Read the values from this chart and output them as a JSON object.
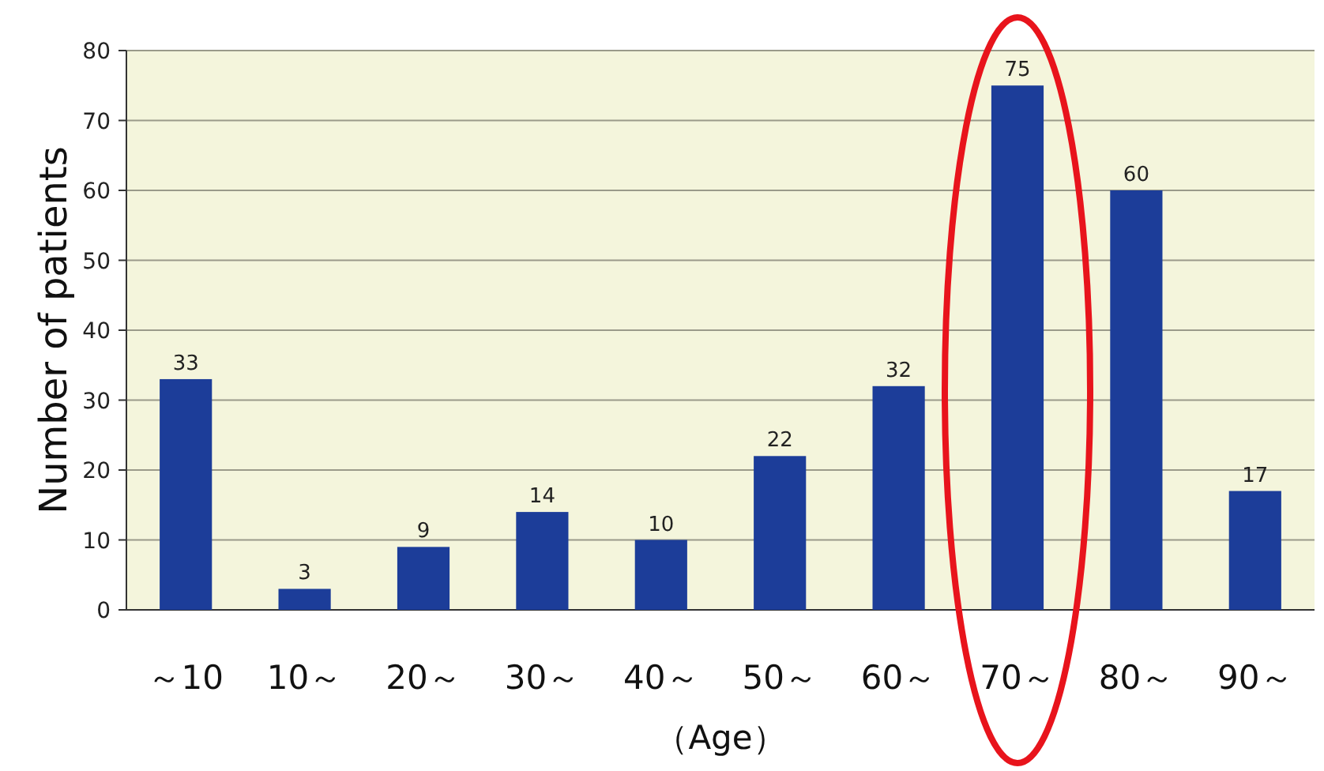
{
  "chart_data": {
    "type": "bar",
    "xlabel": "（Age）",
    "ylabel": "Number of patients",
    "categories": [
      "～10",
      "10～",
      "20～",
      "30～",
      "40～",
      "50～",
      "60～",
      "70～",
      "80～",
      "90～"
    ],
    "values": [
      33,
      3,
      9,
      14,
      10,
      22,
      32,
      75,
      60,
      17
    ],
    "color": "#1c3d99",
    "ylim": [
      0,
      80
    ],
    "yticks": [
      0,
      10,
      20,
      30,
      40,
      50,
      60,
      70,
      80
    ],
    "grid": "y",
    "data_labels": true
  }
}
